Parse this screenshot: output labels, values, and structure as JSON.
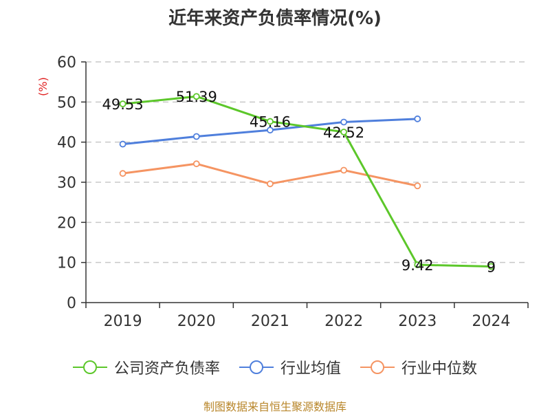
{
  "title": "近年来资产负债率情况(%)",
  "unit_label": "(%)",
  "source": "制图数据来自恒生聚源数据库",
  "colors": {
    "company": "#5cc72a",
    "industry_avg": "#4f7fdc",
    "industry_median": "#f59462",
    "grid": "#c8c8c8",
    "axis": "#333333"
  },
  "chart_data": {
    "type": "line",
    "title": "近年来资产负债率情况(%)",
    "ylabel": "(%)",
    "xlabel": "",
    "categories": [
      "2019",
      "2020",
      "2021",
      "2022",
      "2023",
      "2024"
    ],
    "ylim": [
      0,
      60
    ],
    "yticks": [
      0,
      10,
      20,
      30,
      40,
      50,
      60
    ],
    "grid": true,
    "legend": "bottom",
    "series": [
      {
        "name": "公司资产负债率",
        "color": "#5cc72a",
        "values": [
          49.53,
          51.39,
          45.16,
          42.52,
          9.42,
          9
        ],
        "labels": [
          "49.53",
          "51.39",
          "45.16",
          "42.52",
          "9.42",
          "9"
        ]
      },
      {
        "name": "行业均值",
        "color": "#4f7fdc",
        "values": [
          39.5,
          41.4,
          43.0,
          45.0,
          45.8,
          null
        ]
      },
      {
        "name": "行业中位数",
        "color": "#f59462",
        "values": [
          32.2,
          34.6,
          29.6,
          33.0,
          29.1,
          null
        ]
      }
    ]
  }
}
